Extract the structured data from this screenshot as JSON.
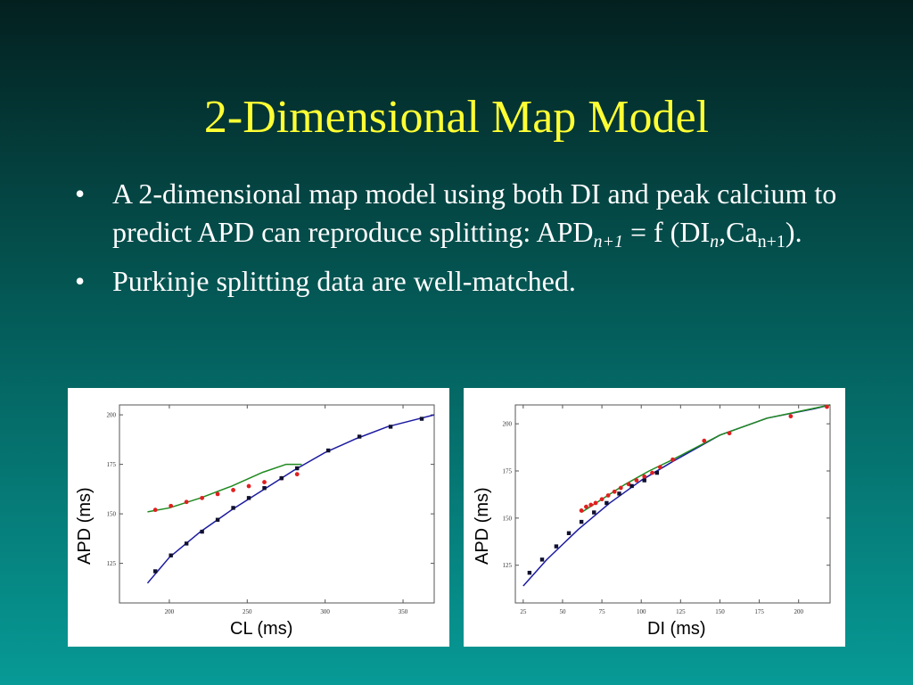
{
  "slide": {
    "title": "2-Dimensional Map Model",
    "bullet_char": "•",
    "bullets": [
      {
        "text_1": "A 2-dimensional map model using both DI and peak calcium to predict APD can reproduce splitting: APD",
        "sub_1": "n+1",
        "text_2": " = f (DI",
        "sub_2": "n",
        "text_3": ",Ca",
        "sub_3": "n+1",
        "text_4": ")."
      },
      {
        "text": "Purkinje splitting data are well-matched."
      }
    ]
  },
  "colors": {
    "title": "#ffff33",
    "text": "#ffffff",
    "blue_curve": "#1a1aa0",
    "green_curve": "#1f8a1f",
    "red_marker": "#e02020",
    "black_marker": "#101030"
  },
  "chart_data": [
    {
      "type": "line",
      "xlabel": "CL (ms)",
      "ylabel": "APD (ms)",
      "xlim": [
        168,
        370
      ],
      "ylim": [
        105,
        205
      ],
      "xticks": [
        200,
        250,
        300,
        350
      ],
      "yticks": [
        125,
        150,
        175,
        200
      ],
      "series": [
        {
          "kind": "line",
          "color": "blue",
          "x": [
            186,
            200,
            220,
            240,
            260,
            280,
            300,
            320,
            340,
            360,
            370
          ],
          "y": [
            115,
            128,
            141,
            152,
            162,
            172,
            181,
            188,
            194,
            198,
            200
          ]
        },
        {
          "kind": "line",
          "color": "green",
          "x": [
            186,
            200,
            220,
            240,
            260,
            275,
            285
          ],
          "y": [
            151,
            153,
            158,
            164,
            171,
            175,
            175
          ]
        },
        {
          "kind": "scatter",
          "color": "red",
          "x": [
            191,
            201,
            211,
            221,
            231,
            241,
            251,
            261,
            272,
            282
          ],
          "y": [
            152,
            154,
            156,
            158,
            160,
            162,
            164,
            166,
            168,
            170
          ]
        },
        {
          "kind": "scatter",
          "color": "black",
          "x": [
            191,
            201,
            211,
            221,
            231,
            241,
            251,
            261,
            272,
            282,
            302,
            322,
            342,
            362
          ],
          "y": [
            121,
            129,
            135,
            141,
            147,
            153,
            158,
            163,
            168,
            173,
            182,
            189,
            194,
            198
          ]
        }
      ]
    },
    {
      "type": "line",
      "xlabel": "DI (ms)",
      "ylabel": "APD (ms)",
      "xlim": [
        20,
        220
      ],
      "ylim": [
        105,
        210
      ],
      "xticks": [
        25,
        50,
        75,
        100,
        125,
        150,
        175,
        200
      ],
      "yticks": [
        125,
        150,
        175,
        200
      ],
      "series": [
        {
          "kind": "line",
          "color": "blue",
          "x": [
            25,
            40,
            60,
            80,
            100,
            120,
            150,
            180,
            210,
            220
          ],
          "y": [
            114,
            128,
            144,
            158,
            170,
            180,
            194,
            203,
            208,
            210
          ]
        },
        {
          "kind": "line",
          "color": "green",
          "x": [
            62,
            75,
            90,
            105,
            120,
            150,
            180,
            220
          ],
          "y": [
            153,
            160,
            168,
            175,
            181,
            194,
            203,
            210
          ]
        },
        {
          "kind": "scatter",
          "color": "red",
          "x": [
            62,
            65,
            68,
            71,
            75,
            79,
            83,
            87,
            92,
            97,
            102,
            107,
            112,
            120,
            140,
            156,
            195,
            218
          ],
          "y": [
            154,
            156,
            157,
            158,
            160,
            162,
            164,
            166,
            168,
            170,
            172,
            174,
            177,
            181,
            191,
            195,
            204,
            209
          ]
        },
        {
          "kind": "scatter",
          "color": "black",
          "x": [
            29,
            37,
            46,
            54,
            62,
            70,
            78,
            86,
            94,
            102,
            110
          ],
          "y": [
            121,
            128,
            135,
            142,
            148,
            153,
            158,
            163,
            167,
            170,
            174
          ]
        }
      ]
    }
  ]
}
